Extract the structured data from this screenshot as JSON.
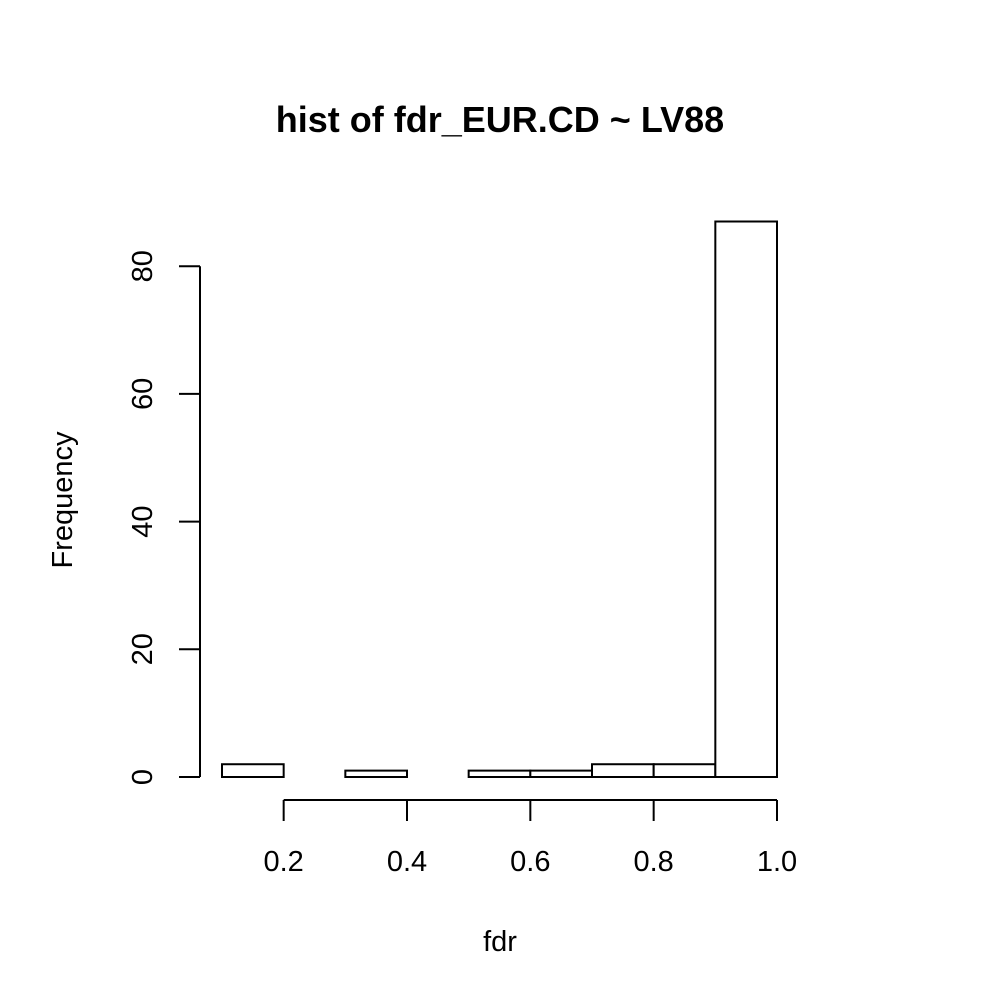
{
  "chart_data": {
    "type": "bar",
    "title": "hist of fdr_EUR.CD ~ LV88",
    "xlabel": "fdr",
    "ylabel": "Frequency",
    "bins": [
      {
        "from": 0.1,
        "to": 0.2,
        "count": 2
      },
      {
        "from": 0.2,
        "to": 0.3,
        "count": 0
      },
      {
        "from": 0.3,
        "to": 0.4,
        "count": 1
      },
      {
        "from": 0.4,
        "to": 0.5,
        "count": 0
      },
      {
        "from": 0.5,
        "to": 0.6,
        "count": 1
      },
      {
        "from": 0.6,
        "to": 0.7,
        "count": 1
      },
      {
        "from": 0.7,
        "to": 0.8,
        "count": 2
      },
      {
        "from": 0.8,
        "to": 0.9,
        "count": 2
      },
      {
        "from": 0.9,
        "to": 1.0,
        "count": 87
      }
    ],
    "x_ticks": [
      0.2,
      0.4,
      0.6,
      0.8,
      1.0
    ],
    "x_tick_labels": [
      "0.2",
      "0.4",
      "0.6",
      "0.8",
      "1.0"
    ],
    "y_ticks": [
      0,
      20,
      40,
      60,
      80
    ],
    "y_tick_labels": [
      "0",
      "20",
      "40",
      "60",
      "80"
    ],
    "xlim": [
      0.1,
      1.0
    ],
    "ylim": [
      0,
      87
    ],
    "grid": false,
    "legend": "none",
    "colors": {
      "bar_fill": "#ffffff",
      "bar_stroke": "#000000"
    }
  }
}
